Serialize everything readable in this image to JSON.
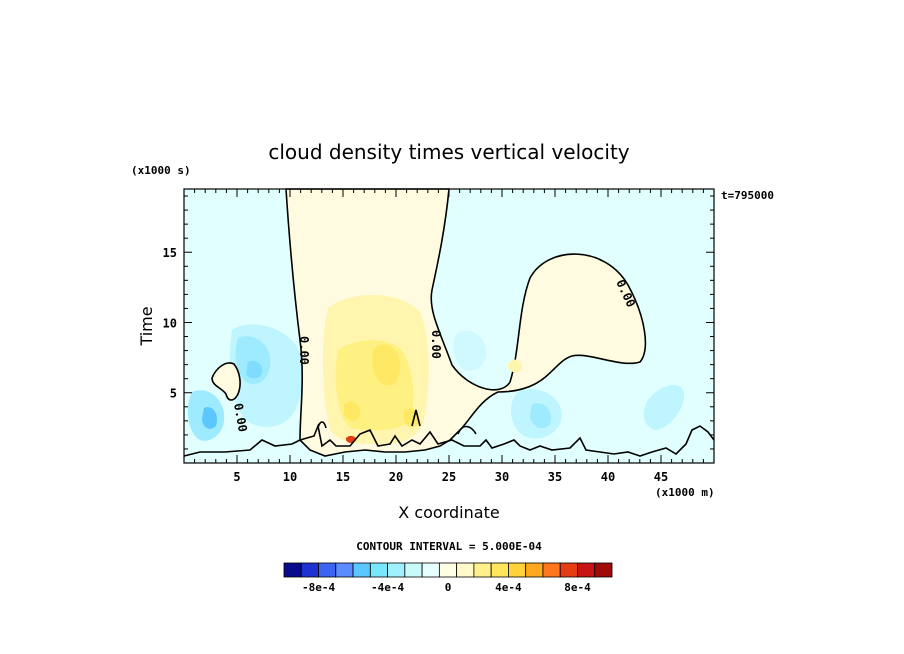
{
  "chart_data": {
    "type": "heatmap",
    "title": "cloud density times vertical velocity",
    "xlabel": "X coordinate",
    "ylabel": "Time",
    "x_unit": "(x1000 m)",
    "y_unit": "(x1000 s)",
    "time_stamp": "t=795000",
    "xlim": [
      0,
      50
    ],
    "ylim": [
      0,
      19.5
    ],
    "x_ticks": [
      "5",
      "10",
      "15",
      "20",
      "25",
      "30",
      "35",
      "40",
      "45"
    ],
    "y_ticks": [
      "5",
      "10",
      "15"
    ],
    "contour_labels": [
      "0.00",
      "0.00",
      "0.00",
      "0.00"
    ],
    "contour_interval_text": "CONTOUR INTERVAL = 5.000E-04",
    "colorbar": {
      "labels": [
        "-8e-4",
        "-4e-4",
        "0",
        "4e-4",
        "8e-4"
      ],
      "colors": [
        "#0a0a8c",
        "#1e32d2",
        "#3c64f0",
        "#5a8cff",
        "#5ac8ff",
        "#78e6ff",
        "#a0f0ff",
        "#c8fafa",
        "#e6ffff",
        "#ffffe6",
        "#fffac8",
        "#fff08c",
        "#ffe65a",
        "#ffd23c",
        "#ffaa1e",
        "#ff781e",
        "#e63c14",
        "#c81414",
        "#a00a0a"
      ]
    },
    "regions": [
      {
        "name": "positive-column",
        "sign": "positive",
        "x_range": [
          10,
          25
        ],
        "y_range": [
          0,
          19.5
        ]
      },
      {
        "name": "positive-blob",
        "sign": "positive",
        "x_range": [
          25,
          43
        ],
        "y_range": [
          4,
          15.5
        ]
      },
      {
        "name": "negative-background",
        "sign": "negative",
        "x_range": [
          0,
          50
        ],
        "y_range": [
          0,
          19.5
        ]
      }
    ]
  }
}
